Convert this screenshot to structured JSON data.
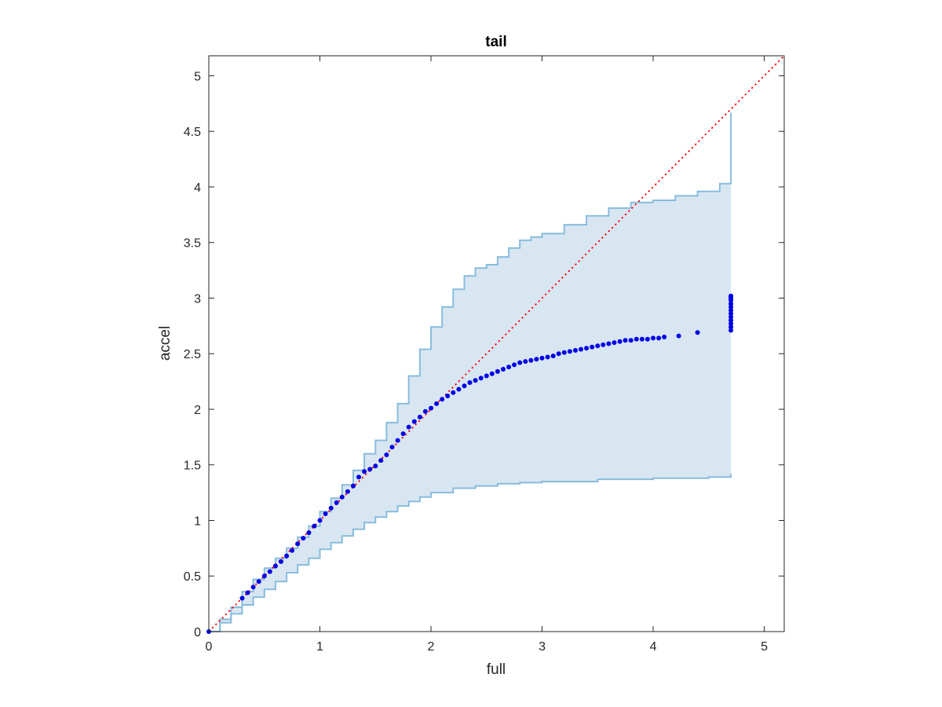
{
  "chart_data": {
    "type": "scatter",
    "title": "tail",
    "xlabel": "full",
    "ylabel": "accel",
    "xlim": [
      0,
      5.18
    ],
    "ylim": [
      0,
      5.18
    ],
    "x_ticks": [
      "0",
      "1",
      "2",
      "3",
      "4",
      "5"
    ],
    "y_ticks": [
      "0",
      "0.5",
      "1",
      "1.5",
      "2",
      "2.5",
      "3",
      "3.5",
      "4",
      "4.5",
      "5"
    ],
    "grid": false,
    "legend": "none",
    "colors": {
      "points": "#0000e6",
      "band_fill": "#d8e6f2",
      "band_edge": "#88bcdc",
      "reference_line": "#ff0000"
    },
    "reference_line": {
      "style": "dotted",
      "from": [
        0,
        0
      ],
      "to": [
        5.18,
        5.18
      ]
    },
    "series": [
      {
        "kind": "points",
        "x": [
          0,
          0.3,
          0.35,
          0.4,
          0.45,
          0.5,
          0.55,
          0.6,
          0.65,
          0.7,
          0.75,
          0.8,
          0.85,
          0.9,
          0.95,
          1.0,
          1.05,
          1.1,
          1.15,
          1.2,
          1.25,
          1.3,
          1.35,
          1.4,
          1.45,
          1.5,
          1.55,
          1.6,
          1.65,
          1.7,
          1.75,
          1.8,
          1.85,
          1.9,
          1.95,
          2.0,
          2.05,
          2.1,
          2.15,
          2.2,
          2.25,
          2.3,
          2.35,
          2.4,
          2.45,
          2.5,
          2.55,
          2.6,
          2.65,
          2.7,
          2.75,
          2.8,
          2.85,
          2.9,
          2.95,
          3.0,
          3.05,
          3.1,
          3.15,
          3.2,
          3.25,
          3.3,
          3.35,
          3.4,
          3.45,
          3.5,
          3.55,
          3.6,
          3.65,
          3.7,
          3.75,
          3.8,
          3.85,
          3.9,
          3.95,
          4.0,
          4.05,
          4.1,
          4.23,
          4.4,
          4.7,
          4.7,
          4.7,
          4.7,
          4.7,
          4.7,
          4.7,
          4.7,
          4.7,
          4.7,
          4.7,
          4.7,
          4.7
        ],
        "y": [
          0,
          0.3,
          0.35,
          0.4,
          0.45,
          0.5,
          0.54,
          0.59,
          0.63,
          0.68,
          0.73,
          0.79,
          0.84,
          0.89,
          0.95,
          1.0,
          1.06,
          1.11,
          1.16,
          1.21,
          1.26,
          1.31,
          1.39,
          1.44,
          1.46,
          1.49,
          1.54,
          1.59,
          1.66,
          1.72,
          1.78,
          1.84,
          1.89,
          1.93,
          1.98,
          2.01,
          2.05,
          2.09,
          2.12,
          2.15,
          2.18,
          2.21,
          2.24,
          2.26,
          2.28,
          2.3,
          2.32,
          2.34,
          2.36,
          2.38,
          2.4,
          2.42,
          2.43,
          2.44,
          2.45,
          2.46,
          2.47,
          2.48,
          2.5,
          2.51,
          2.52,
          2.53,
          2.54,
          2.55,
          2.56,
          2.57,
          2.58,
          2.59,
          2.6,
          2.61,
          2.62,
          2.62,
          2.63,
          2.63,
          2.63,
          2.64,
          2.64,
          2.65,
          2.66,
          2.69,
          2.71,
          2.74,
          2.77,
          2.8,
          2.83,
          2.86,
          2.89,
          2.92,
          2.95,
          2.98,
          3.0,
          3.01,
          3.02
        ]
      },
      {
        "kind": "band_upper",
        "x": [
          0,
          0.1,
          0.2,
          0.3,
          0.4,
          0.5,
          0.6,
          0.7,
          0.8,
          0.9,
          1.0,
          1.1,
          1.2,
          1.3,
          1.4,
          1.5,
          1.6,
          1.7,
          1.8,
          1.9,
          2.0,
          2.1,
          2.2,
          2.3,
          2.4,
          2.5,
          2.6,
          2.7,
          2.8,
          2.9,
          3.0,
          3.2,
          3.4,
          3.6,
          3.8,
          4.0,
          4.2,
          4.4,
          4.6,
          4.7,
          4.7
        ],
        "y": [
          0,
          0.11,
          0.22,
          0.36,
          0.47,
          0.57,
          0.66,
          0.75,
          0.85,
          0.95,
          1.08,
          1.2,
          1.32,
          1.45,
          1.6,
          1.72,
          1.88,
          2.05,
          2.3,
          2.54,
          2.74,
          2.92,
          3.08,
          3.2,
          3.27,
          3.3,
          3.37,
          3.45,
          3.52,
          3.55,
          3.58,
          3.66,
          3.74,
          3.81,
          3.86,
          3.88,
          3.92,
          3.96,
          4.03,
          4.03,
          4.67
        ]
      },
      {
        "kind": "band_lower",
        "x": [
          0,
          0.1,
          0.2,
          0.3,
          0.4,
          0.5,
          0.6,
          0.7,
          0.8,
          0.9,
          1.0,
          1.1,
          1.2,
          1.3,
          1.4,
          1.5,
          1.6,
          1.7,
          1.8,
          1.9,
          2.0,
          2.2,
          2.4,
          2.6,
          2.8,
          3.0,
          3.5,
          4.0,
          4.5,
          4.7,
          4.7
        ],
        "y": [
          0,
          0.08,
          0.16,
          0.24,
          0.31,
          0.38,
          0.45,
          0.53,
          0.6,
          0.66,
          0.74,
          0.8,
          0.86,
          0.92,
          0.98,
          1.03,
          1.08,
          1.13,
          1.17,
          1.21,
          1.25,
          1.29,
          1.31,
          1.33,
          1.34,
          1.35,
          1.37,
          1.38,
          1.39,
          1.39,
          1.42
        ]
      }
    ]
  }
}
